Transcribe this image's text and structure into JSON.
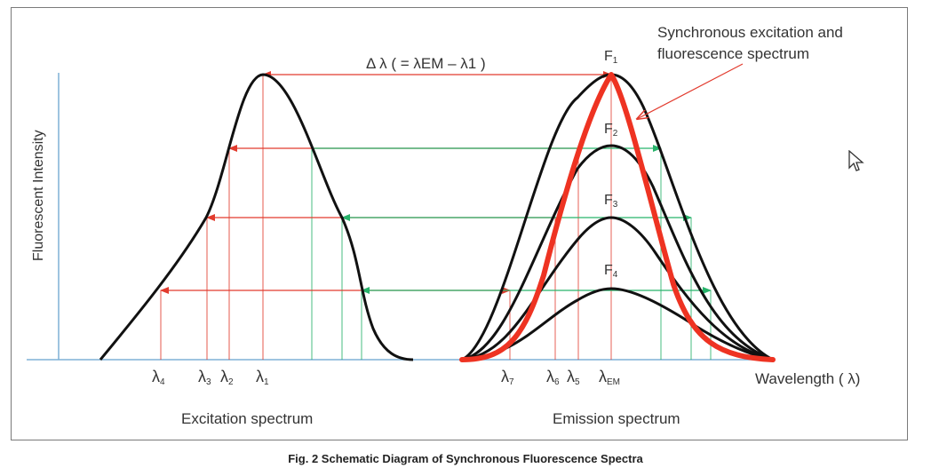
{
  "axes": {
    "y_label": "Fluorescent Intensity",
    "x_label": "Wavelength ( λ)"
  },
  "delta_label": "Δ λ ( = λEM – λ1 )",
  "callout": {
    "line1": "Synchronous excitation and",
    "line2": "fluorescence spectrum"
  },
  "peaks": [
    {
      "letter": "F",
      "sub": "1"
    },
    {
      "letter": "F",
      "sub": "2"
    },
    {
      "letter": "F",
      "sub": "3"
    },
    {
      "letter": "F",
      "sub": "4"
    }
  ],
  "excitation_ticks": [
    {
      "sym": "λ",
      "sub": "4"
    },
    {
      "sym": "λ",
      "sub": "3"
    },
    {
      "sym": "λ",
      "sub": "2"
    },
    {
      "sym": "λ",
      "sub": "1"
    }
  ],
  "emission_ticks": [
    {
      "sym": "λ",
      "sub": "7"
    },
    {
      "sym": "λ",
      "sub": "6"
    },
    {
      "sym": "λ",
      "sub": "5"
    },
    {
      "sym": "λ",
      "sub": "EM"
    }
  ],
  "spectra": {
    "excitation": "Excitation spectrum",
    "emission": "Emission spectrum"
  },
  "colors": {
    "curve": "#111111",
    "excitation_line": "#e23b2e",
    "emission_line": "#28b36b",
    "synchronous": "#ee3322",
    "axis": "#7fb0d6"
  },
  "caption": "Fig. 2  Schematic Diagram of Synchronous Fluorescence Spectra"
}
